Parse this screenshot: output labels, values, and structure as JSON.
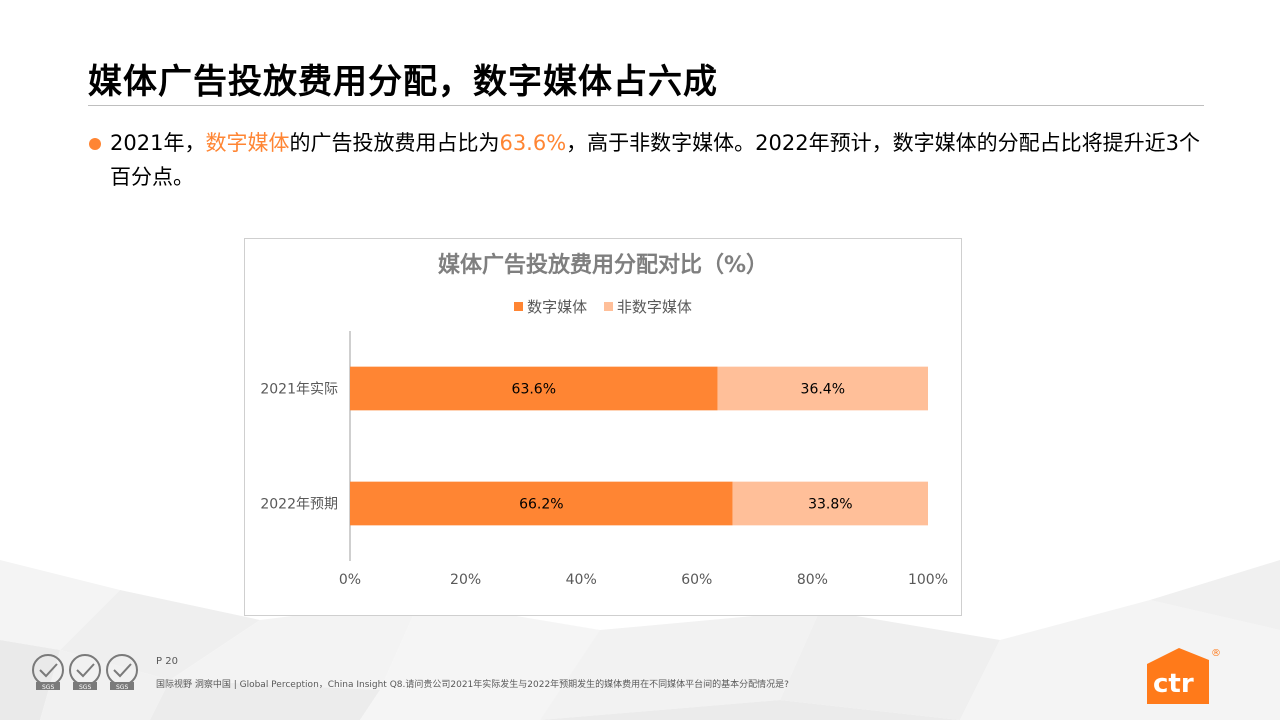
{
  "page": {
    "title": "媒体广告投放费用分配，数字媒体占六成",
    "bullet": {
      "seg1": "2021年，",
      "highlight1": "数字媒体",
      "seg2": "的广告投放费用占比为",
      "highlight2": "63.6%",
      "seg3": "，高于非数字媒体。2022年预计，数字媒体的分配占比将提升近3个百分点。"
    },
    "accent_color": "#ff8533"
  },
  "chart_data": {
    "type": "bar",
    "orientation": "horizontal",
    "stacked": true,
    "title": "媒体广告投放费用分配对比（%）",
    "categories": [
      "2021年实际",
      "2022年预期"
    ],
    "series": [
      {
        "name": "数字媒体",
        "values": [
          63.6,
          66.2
        ],
        "labels": [
          "63.6%",
          "66.2%"
        ],
        "color": "#ff8533"
      },
      {
        "name": "非数字媒体",
        "values": [
          36.4,
          33.8
        ],
        "labels": [
          "36.4%",
          "33.8%"
        ],
        "color": "#ffbf99"
      }
    ],
    "xlim": [
      0,
      100
    ],
    "xticks": [
      "0%",
      "20%",
      "40%",
      "60%",
      "80%",
      "100%"
    ],
    "grid": false,
    "legend": "top-center"
  },
  "footer": {
    "page_number": "P 20",
    "source": "国际视野  洞察中国 |  Global Perception，China Insight Q8.请问贵公司2021年实际发生与2022年预期发生的媒体费用在不同媒体平台间的基本分配情况是?",
    "seal_label": "SGS",
    "logo_text": "ctr",
    "logo_mark": "®"
  }
}
